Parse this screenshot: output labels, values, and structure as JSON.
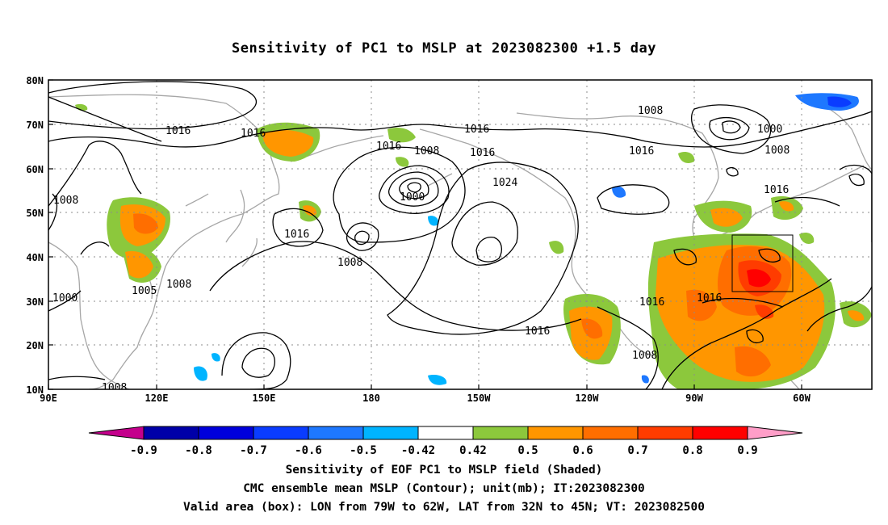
{
  "title": "Sensitivity of PC1 to MSLP at 2023082300 +1.5 day",
  "map": {
    "lat_ticks": [
      "80N",
      "70N",
      "60N",
      "50N",
      "40N",
      "30N",
      "20N",
      "10N"
    ],
    "lon_ticks": [
      "90E",
      "120E",
      "150E",
      "180",
      "150W",
      "120W",
      "90W",
      "60W"
    ],
    "isobar_labels": [
      "1016",
      "1016",
      "1016",
      "1016",
      "1016",
      "1016",
      "1016",
      "1016",
      "1016",
      "1016",
      "1016",
      "1008",
      "1008",
      "1008",
      "1008",
      "1008",
      "1008",
      "1008",
      "1008",
      "1000",
      "1000",
      "1000",
      "1005",
      "1024"
    ],
    "valid_box": {
      "lon_from": "79W",
      "lon_to": "62W",
      "lat_from": "32N",
      "lat_to": "45N"
    }
  },
  "colorbar": {
    "labels": [
      "-0.9",
      "-0.8",
      "-0.7",
      "-0.6",
      "-0.5",
      "-0.42",
      "0.42",
      "0.5",
      "0.6",
      "0.7",
      "0.8",
      "0.9"
    ],
    "colors": [
      "#c4008c",
      "#0000a8",
      "#0000dc",
      "#0a3cff",
      "#1e78ff",
      "#00b4ff",
      "#ffffff",
      "#8cc83c",
      "#ff9600",
      "#ff6e00",
      "#ff3c00",
      "#ff0000",
      "#ff9ec8"
    ]
  },
  "captions": {
    "line1": "Sensitivity of EOF PC1 to MSLP field (Shaded)",
    "line2": "CMC ensemble mean MSLP (Contour); unit(mb); IT:2023082300",
    "line3": "Valid area (box): LON from 79W to 62W, LAT from 32N to 45N; VT: 2023082500"
  }
}
